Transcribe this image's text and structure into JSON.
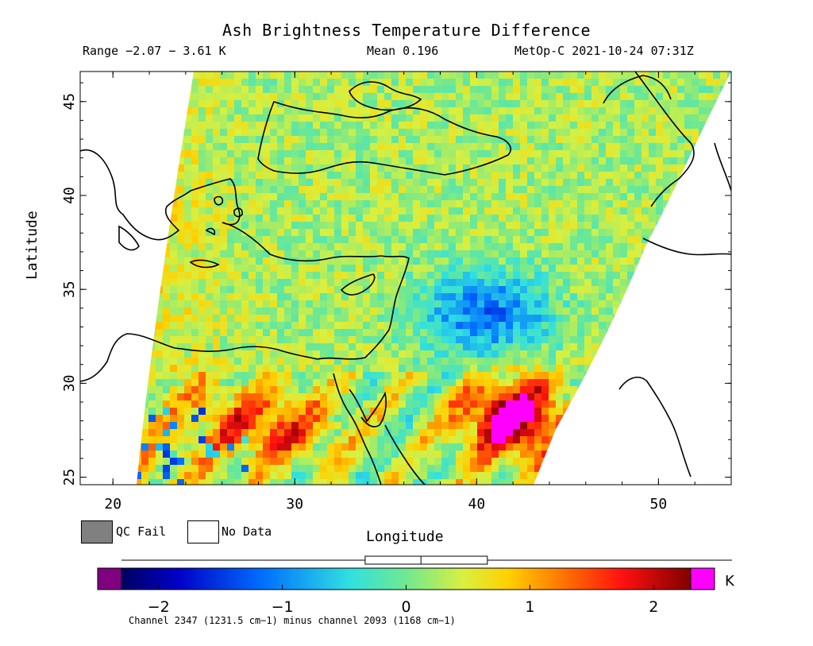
{
  "title": "Ash Brightness Temperature Difference",
  "stats": {
    "range": "Range −2.07 − 3.61 K",
    "mean": "Mean 0.196",
    "satellite": "MetOp-C 2021-10-24 07:31Z"
  },
  "axes": {
    "xlabel": "Longitude",
    "ylabel": "Latitude",
    "x_ticks": [
      "20",
      "30",
      "40",
      "50"
    ],
    "y_ticks": [
      "45",
      "40",
      "35",
      "30",
      "25"
    ],
    "x_range": [
      18.2,
      54
    ],
    "y_range": [
      24.6,
      46.6
    ]
  },
  "legend": {
    "qc_fail": "QC Fail",
    "no_data": "No Data",
    "qc_fail_color": "#808080",
    "no_data_color": "#ffffff"
  },
  "colorbar": {
    "unit": "K",
    "ticks": [
      "−2",
      "−1",
      "0",
      "1",
      "2"
    ],
    "tick_values": [
      -2,
      -1,
      0,
      1,
      2
    ],
    "range": [
      -2.3,
      2.3
    ],
    "under_color": "#800080",
    "over_color": "#ff00ff",
    "box_stats": {
      "min": -2.07,
      "q1": -0.1,
      "median": 0.12,
      "q3": 0.4,
      "max": 3.61
    }
  },
  "footnote": "Channel 2347 (1231.5 cm−1) minus channel 2093 (1168 cm−1)",
  "colors": {
    "land_outline": "#000000",
    "background": "#ffffff"
  }
}
